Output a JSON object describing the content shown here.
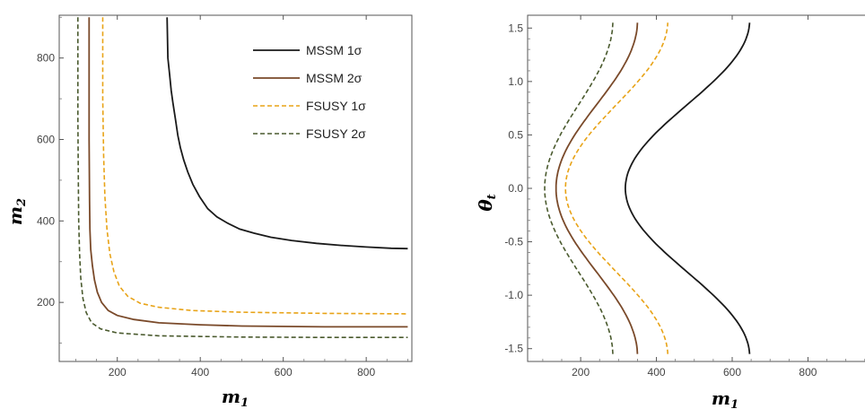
{
  "chart_data": [
    {
      "type": "line",
      "xlabel": "m",
      "xlabel_sub": "1",
      "ylabel": "m",
      "ylabel_sub": "2",
      "xlim": [
        60,
        910
      ],
      "ylim": [
        55,
        905
      ],
      "x_ticks": [
        200,
        400,
        600,
        800
      ],
      "y_ticks": [
        200,
        400,
        600,
        800
      ],
      "grid": false,
      "legend_position": "top-right",
      "series": [
        {
          "name": "MSSM 1σ",
          "color": "#1a1a1a",
          "dash": "solid",
          "points": [
            [
              320,
              900
            ],
            [
              322,
              800
            ],
            [
              326,
              760
            ],
            [
              330,
              720
            ],
            [
              334,
              690
            ],
            [
              340,
              650
            ],
            [
              346,
              610
            ],
            [
              352,
              580
            ],
            [
              360,
              550
            ],
            [
              370,
              520
            ],
            [
              382,
              490
            ],
            [
              398,
              460
            ],
            [
              418,
              430
            ],
            [
              440,
              410
            ],
            [
              465,
              395
            ],
            [
              495,
              380
            ],
            [
              530,
              370
            ],
            [
              570,
              360
            ],
            [
              620,
              352
            ],
            [
              680,
              345
            ],
            [
              740,
              340
            ],
            [
              800,
              336
            ],
            [
              860,
              333
            ],
            [
              900,
              332
            ]
          ]
        },
        {
          "name": "MSSM 2σ",
          "color": "#7a4a2a",
          "dash": "solid",
          "points": [
            [
              132,
              900
            ],
            [
              132,
              600
            ],
            [
              133,
              450
            ],
            [
              134,
              380
            ],
            [
              136,
              330
            ],
            [
              140,
              290
            ],
            [
              145,
              255
            ],
            [
              152,
              225
            ],
            [
              162,
              200
            ],
            [
              178,
              180
            ],
            [
              200,
              168
            ],
            [
              240,
              158
            ],
            [
              300,
              150
            ],
            [
              400,
              145
            ],
            [
              500,
              142
            ],
            [
              700,
              140
            ],
            [
              900,
              140
            ]
          ]
        },
        {
          "name": "FSUSY 1σ",
          "color": "#e8a317",
          "dash": "dashed",
          "points": [
            [
              165,
              900
            ],
            [
              165,
              700
            ],
            [
              167,
              560
            ],
            [
              170,
              460
            ],
            [
              175,
              380
            ],
            [
              182,
              320
            ],
            [
              192,
              275
            ],
            [
              205,
              240
            ],
            [
              225,
              215
            ],
            [
              255,
              198
            ],
            [
              300,
              188
            ],
            [
              380,
              180
            ],
            [
              500,
              176
            ],
            [
              700,
              173
            ],
            [
              900,
              172
            ]
          ]
        },
        {
          "name": "FSUSY 2σ",
          "color": "#4a5a2e",
          "dash": "dashed",
          "points": [
            [
              105,
              900
            ],
            [
              105,
              650
            ],
            [
              106,
              500
            ],
            [
              107,
              400
            ],
            [
              109,
              320
            ],
            [
              112,
              260
            ],
            [
              117,
              210
            ],
            [
              125,
              175
            ],
            [
              138,
              150
            ],
            [
              160,
              135
            ],
            [
              200,
              125
            ],
            [
              300,
              118
            ],
            [
              500,
              115
            ],
            [
              700,
              114
            ],
            [
              900,
              114
            ]
          ]
        }
      ]
    },
    {
      "type": "line",
      "xlabel": "m",
      "xlabel_sub": "1",
      "ylabel": "θ",
      "ylabel_sub": "t",
      "xlim": [
        60,
        960
      ],
      "ylim": [
        -1.62,
        1.62
      ],
      "x_ticks": [
        200,
        400,
        600,
        800
      ],
      "y_ticks": [
        -1.5,
        -1.0,
        -0.5,
        0.0,
        0.5,
        1.0,
        1.5
      ],
      "grid": false,
      "series": [
        {
          "name": "MSSM 1σ",
          "color": "#1a1a1a",
          "dash": "solid",
          "base": 318,
          "amp": 328
        },
        {
          "name": "MSSM 2σ",
          "color": "#7a4a2a",
          "dash": "solid",
          "base": 135,
          "amp": 215
        },
        {
          "name": "FSUSY 1σ",
          "color": "#e8a317",
          "dash": "dashed",
          "base": 160,
          "amp": 270
        },
        {
          "name": "FSUSY 2σ",
          "color": "#4a5a2e",
          "dash": "dashed",
          "base": 105,
          "amp": 180
        }
      ]
    }
  ]
}
